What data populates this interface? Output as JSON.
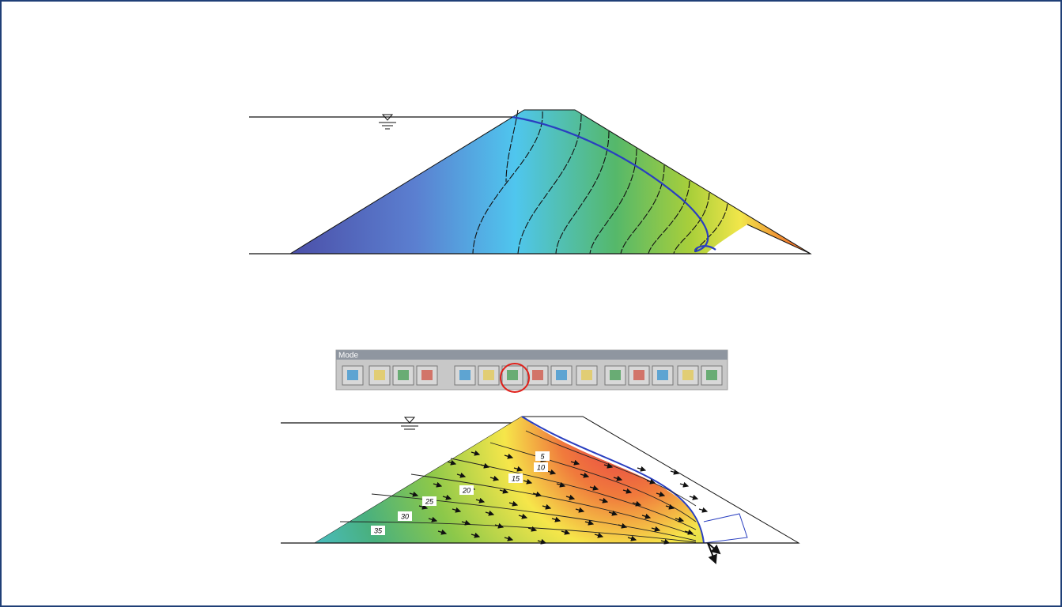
{
  "toolbar": {
    "title": "Mode"
  },
  "contour_labels": [
    5,
    10,
    15,
    20,
    25,
    30,
    35
  ]
}
